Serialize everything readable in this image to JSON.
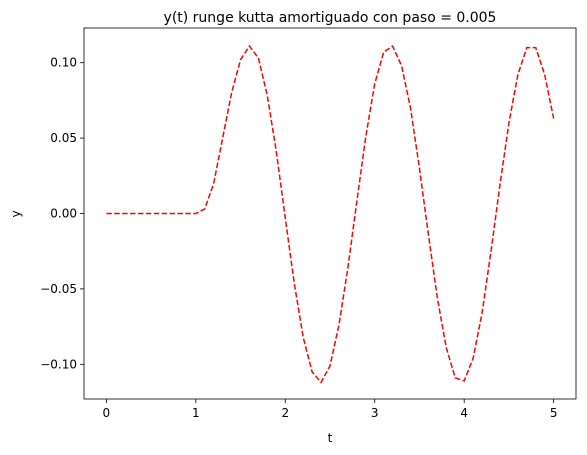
{
  "chart_data": {
    "type": "line",
    "title": "y(t) runge kutta amortiguado con paso = 0.005",
    "x_label": "t",
    "y_label": "y",
    "x": [
      0,
      0.1,
      0.2,
      0.3,
      0.4,
      0.5,
      0.6,
      0.7,
      0.8,
      0.9,
      1.0,
      1.1,
      1.2,
      1.3,
      1.4,
      1.5,
      1.6,
      1.7,
      1.8,
      1.9,
      2.0,
      2.1,
      2.2,
      2.3,
      2.4,
      2.5,
      2.6,
      2.7,
      2.8,
      2.9,
      3.0,
      3.1,
      3.2,
      3.3,
      3.4,
      3.5,
      3.6,
      3.7,
      3.8,
      3.9,
      4.0,
      4.1,
      4.2,
      4.3,
      4.4,
      4.5,
      4.6,
      4.7,
      4.8,
      4.9,
      5.0
    ],
    "series": [
      {
        "color": "#ff0000",
        "line_style": "dashed",
        "values": [
          0,
          0,
          0,
          0,
          0,
          0,
          0,
          0,
          0,
          0,
          0,
          0.003,
          0.02,
          0.05,
          0.08,
          0.102,
          0.111,
          0.103,
          0.078,
          0.041,
          -0.003,
          -0.046,
          -0.082,
          -0.105,
          -0.112,
          -0.101,
          -0.074,
          -0.036,
          0.008,
          0.051,
          0.086,
          0.107,
          0.111,
          0.098,
          0.07,
          0.03,
          -0.014,
          -0.056,
          -0.089,
          -0.109,
          -0.111,
          -0.096,
          -0.066,
          -0.025,
          0.019,
          0.06,
          0.092,
          0.11,
          0.11,
          0.092,
          0.063
        ]
      }
    ],
    "xlim": [
      -0.25,
      5.25
    ],
    "ylim": [
      -0.123,
      0.123
    ],
    "xticks": [
      0,
      1,
      2,
      3,
      4,
      5
    ],
    "yticks": [
      {
        "value": -0.1,
        "label": "−0.10"
      },
      {
        "value": -0.05,
        "label": "−0.05"
      },
      {
        "value": 0,
        "label": "0.00"
      },
      {
        "value": 0.05,
        "label": "0.05"
      },
      {
        "value": 0.1,
        "label": "0.10"
      }
    ]
  }
}
